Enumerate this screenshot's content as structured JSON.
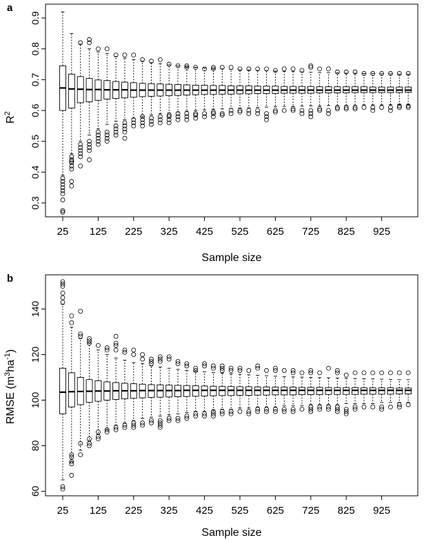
{
  "chart_data": [
    {
      "type": "boxplot",
      "panel_label": "a",
      "xlabel": "Sample size",
      "ylabel": "R",
      "ylabel_superscript": "2",
      "ylim": [
        0.255,
        0.945
      ],
      "yticks": [
        "0.3",
        "0.4",
        "0.5",
        "0.6",
        "0.7",
        "0.8",
        "0.9"
      ],
      "xticks": [
        "25",
        "125",
        "225",
        "325",
        "425",
        "525",
        "625",
        "725",
        "825",
        "925"
      ],
      "series": {
        "sizes": [
          25,
          50,
          75,
          100,
          125,
          150,
          175,
          200,
          225,
          250,
          275,
          300,
          325,
          350,
          375,
          400,
          425,
          450,
          475,
          500,
          525,
          550,
          575,
          600,
          625,
          650,
          675,
          700,
          725,
          750,
          775,
          800,
          825,
          850,
          875,
          900,
          925,
          950,
          975,
          1000
        ],
        "q1": [
          0.6,
          0.608,
          0.625,
          0.628,
          0.633,
          0.637,
          0.639,
          0.641,
          0.643,
          0.645,
          0.646,
          0.647,
          0.648,
          0.649,
          0.65,
          0.651,
          0.652,
          0.652,
          0.653,
          0.653,
          0.654,
          0.654,
          0.655,
          0.655,
          0.655,
          0.656,
          0.656,
          0.656,
          0.656,
          0.657,
          0.657,
          0.657,
          0.657,
          0.658,
          0.658,
          0.658,
          0.658,
          0.658,
          0.658,
          0.659
        ],
        "median": [
          0.673,
          0.67,
          0.669,
          0.668,
          0.668,
          0.667,
          0.667,
          0.667,
          0.666,
          0.666,
          0.666,
          0.666,
          0.666,
          0.666,
          0.666,
          0.666,
          0.666,
          0.666,
          0.666,
          0.666,
          0.666,
          0.666,
          0.666,
          0.666,
          0.666,
          0.666,
          0.666,
          0.666,
          0.666,
          0.666,
          0.666,
          0.666,
          0.666,
          0.666,
          0.666,
          0.666,
          0.666,
          0.666,
          0.666,
          0.666
        ],
        "q3": [
          0.745,
          0.718,
          0.71,
          0.704,
          0.699,
          0.697,
          0.694,
          0.692,
          0.69,
          0.688,
          0.687,
          0.686,
          0.685,
          0.684,
          0.683,
          0.682,
          0.682,
          0.681,
          0.681,
          0.68,
          0.68,
          0.68,
          0.679,
          0.679,
          0.679,
          0.678,
          0.678,
          0.678,
          0.678,
          0.677,
          0.677,
          0.677,
          0.677,
          0.677,
          0.677,
          0.676,
          0.676,
          0.676,
          0.676,
          0.676
        ],
        "wlow": [
          0.39,
          0.46,
          0.5,
          0.52,
          0.54,
          0.555,
          0.565,
          0.57,
          0.575,
          0.58,
          0.585,
          0.59,
          0.592,
          0.595,
          0.598,
          0.6,
          0.602,
          0.604,
          0.605,
          0.607,
          0.608,
          0.609,
          0.61,
          0.611,
          0.612,
          0.613,
          0.613,
          0.614,
          0.615,
          0.615,
          0.616,
          0.616,
          0.617,
          0.617,
          0.618,
          0.618,
          0.618,
          0.619,
          0.619,
          0.619
        ],
        "whigh": [
          0.92,
          0.85,
          0.815,
          0.8,
          0.79,
          0.785,
          0.775,
          0.77,
          0.765,
          0.76,
          0.755,
          0.752,
          0.748,
          0.745,
          0.742,
          0.74,
          0.738,
          0.736,
          0.735,
          0.733,
          0.732,
          0.731,
          0.73,
          0.729,
          0.728,
          0.727,
          0.726,
          0.725,
          0.724,
          0.723,
          0.723,
          0.722,
          0.721,
          0.721,
          0.72,
          0.72,
          0.719,
          0.719,
          0.718,
          0.718
        ],
        "outliers_low": [
          [
            0.27,
            0.275,
            0.31,
            0.33,
            0.34,
            0.35,
            0.36,
            0.37,
            0.38
          ],
          [
            0.355,
            0.37,
            0.41,
            0.42,
            0.43,
            0.435,
            0.44,
            0.45
          ],
          [
            0.42,
            0.45,
            0.46,
            0.47,
            0.48,
            0.49
          ],
          [
            0.44,
            0.47,
            0.48,
            0.49,
            0.5
          ],
          [
            0.49,
            0.5,
            0.51,
            0.52,
            0.53
          ],
          [
            0.5,
            0.51,
            0.52,
            0.53
          ],
          [
            0.52,
            0.53,
            0.54,
            0.55
          ],
          [
            0.51,
            0.53,
            0.54,
            0.55,
            0.56
          ],
          [
            0.55,
            0.56,
            0.57
          ],
          [
            0.55,
            0.56,
            0.57,
            0.58
          ],
          [
            0.555,
            0.565,
            0.575
          ],
          [
            0.56,
            0.57,
            0.58
          ],
          [
            0.56,
            0.57,
            0.58,
            0.585
          ],
          [
            0.57,
            0.58,
            0.59
          ],
          [
            0.57,
            0.58,
            0.59
          ],
          [
            0.575,
            0.585,
            0.59
          ],
          [
            0.58,
            0.59
          ],
          [
            0.58,
            0.59,
            0.595
          ],
          [
            0.585,
            0.59
          ],
          [
            0.59,
            0.6
          ],
          [
            0.595,
            0.6
          ],
          [
            0.59,
            0.6
          ],
          [
            0.59,
            0.6
          ],
          [
            0.57,
            0.58,
            0.59
          ],
          [
            0.595,
            0.6
          ],
          [
            0.6
          ],
          [
            0.6,
            0.605
          ],
          [
            0.59,
            0.6
          ],
          [
            0.58,
            0.59,
            0.6
          ],
          [
            0.6,
            0.605
          ],
          [
            0.59,
            0.6
          ],
          [
            0.605,
            0.61
          ],
          [
            0.605,
            0.61
          ],
          [
            0.605,
            0.61
          ],
          [
            0.61
          ],
          [
            0.6,
            0.61
          ],
          [
            0.61
          ],
          [
            0.6,
            0.61
          ],
          [
            0.61,
            0.615
          ],
          [
            0.61,
            0.615
          ]
        ],
        "outliers_high": [
          [],
          [],
          [
            0.82
          ],
          [
            0.82,
            0.83
          ],
          [
            0.8
          ],
          [
            0.8
          ],
          [
            0.78
          ],
          [
            0.78
          ],
          [
            0.78
          ],
          [
            0.765
          ],
          [
            0.76
          ],
          [
            0.765
          ],
          [
            0.75
          ],
          [
            0.745
          ],
          [
            0.745,
            0.74
          ],
          [
            0.74
          ],
          [
            0.735
          ],
          [
            0.74,
            0.735
          ],
          [
            0.74
          ],
          [
            0.74
          ],
          [
            0.735
          ],
          [
            0.735
          ],
          [
            0.735
          ],
          [
            0.735
          ],
          [
            0.73
          ],
          [
            0.735
          ],
          [
            0.735
          ],
          [
            0.73
          ],
          [
            0.745,
            0.74
          ],
          [
            0.735
          ],
          [
            0.735
          ],
          [
            0.725
          ],
          [
            0.725
          ],
          [
            0.725
          ],
          [
            0.72
          ],
          [
            0.72
          ],
          [
            0.72
          ],
          [
            0.72
          ],
          [
            0.72
          ],
          [
            0.72
          ]
        ]
      }
    },
    {
      "type": "boxplot",
      "panel_label": "b",
      "xlabel": "Sample size",
      "ylabel": "RMSE (m",
      "ylabel_sup1": "3",
      "ylabel_mid": "ha",
      "ylabel_sup2": "-1",
      "ylabel_end": ")",
      "ylim": [
        58,
        155
      ],
      "yticks": [
        "60",
        "80",
        "100",
        "120",
        "140"
      ],
      "xticks": [
        "25",
        "125",
        "225",
        "325",
        "425",
        "525",
        "625",
        "725",
        "825",
        "925"
      ],
      "series": {
        "sizes": [
          25,
          50,
          75,
          100,
          125,
          150,
          175,
          200,
          225,
          250,
          275,
          300,
          325,
          350,
          375,
          400,
          425,
          450,
          475,
          500,
          525,
          550,
          575,
          600,
          625,
          650,
          675,
          700,
          725,
          750,
          775,
          800,
          825,
          850,
          875,
          900,
          925,
          950,
          975,
          1000
        ],
        "q1": [
          94,
          97,
          98,
          99,
          99.5,
          100,
          100.3,
          100.6,
          100.8,
          101,
          101.2,
          101.3,
          101.4,
          101.5,
          101.6,
          101.7,
          101.8,
          101.9,
          102,
          102,
          102.1,
          102.1,
          102.2,
          102.2,
          102.3,
          102.3,
          102.3,
          102.4,
          102.4,
          102.4,
          102.5,
          102.5,
          102.5,
          102.5,
          102.6,
          102.6,
          102.6,
          102.6,
          102.7,
          102.7
        ],
        "median": [
          103.5,
          103.7,
          103.8,
          103.9,
          104,
          104,
          104.1,
          104.1,
          104.1,
          104.2,
          104.2,
          104.2,
          104.2,
          104.2,
          104.3,
          104.3,
          104.3,
          104.3,
          104.3,
          104.3,
          104.3,
          104.3,
          104.3,
          104.3,
          104.3,
          104.3,
          104.3,
          104.3,
          104.3,
          104.3,
          104.3,
          104.3,
          104.3,
          104.3,
          104.3,
          104.3,
          104.3,
          104.3,
          104.3,
          104.3
        ],
        "q3": [
          114,
          112,
          110,
          109,
          108.5,
          108,
          107.7,
          107.4,
          107.2,
          107,
          106.8,
          106.7,
          106.6,
          106.5,
          106.4,
          106.3,
          106.2,
          106.1,
          106,
          106,
          105.9,
          105.9,
          105.8,
          105.8,
          105.7,
          105.7,
          105.7,
          105.6,
          105.6,
          105.6,
          105.5,
          105.5,
          105.5,
          105.5,
          105.4,
          105.4,
          105.4,
          105.4,
          105.3,
          105.3
        ],
        "wlow": [
          65,
          73,
          78,
          82,
          85,
          87,
          89,
          90,
          91,
          92,
          92.5,
          93,
          93.5,
          94,
          94.5,
          95,
          95,
          95.5,
          96,
          96,
          96.5,
          96.5,
          97,
          97,
          97,
          97.5,
          97.5,
          97.5,
          98,
          98,
          98,
          98,
          98.5,
          98.5,
          98.5,
          98.5,
          99,
          99,
          99,
          99
        ],
        "whigh": [
          142,
          132,
          127,
          125,
          122,
          120,
          118.5,
          117.5,
          116.5,
          116,
          115,
          114.5,
          114,
          113.5,
          113,
          112.7,
          112.4,
          112.1,
          111.8,
          111.5,
          111.3,
          111.1,
          110.9,
          110.7,
          110.5,
          110.3,
          110.2,
          110.1,
          110,
          109.9,
          109.8,
          109.7,
          109.6,
          109.5,
          109.4,
          109.3,
          109.2,
          109.1,
          109,
          109
        ],
        "outliers_low": [
          [
            61,
            62
          ],
          [
            67,
            72,
            73,
            75,
            76
          ],
          [
            76,
            81
          ],
          [
            80,
            81,
            83
          ],
          [
            83,
            84,
            86
          ],
          [
            86,
            87
          ],
          [
            87,
            88
          ],
          [
            88,
            89
          ],
          [
            88,
            89,
            90
          ],
          [
            89,
            90
          ],
          [
            90,
            91
          ],
          [
            88,
            89,
            90,
            91
          ],
          [
            91,
            92
          ],
          [
            91,
            92
          ],
          [
            92,
            93
          ],
          [
            93,
            94
          ],
          [
            93,
            94
          ],
          [
            93,
            94,
            95
          ],
          [
            94,
            95
          ],
          [
            94,
            95
          ],
          [
            95
          ],
          [
            94,
            95
          ],
          [
            95,
            96
          ],
          [
            95,
            96
          ],
          [
            95,
            96
          ],
          [
            95,
            96
          ],
          [
            95,
            96
          ],
          [
            96
          ],
          [
            95,
            96,
            97
          ],
          [
            96,
            97
          ],
          [
            96,
            97
          ],
          [
            95,
            96,
            97
          ],
          [
            94,
            95,
            96
          ],
          [
            96,
            97
          ],
          [
            97
          ],
          [
            97
          ],
          [
            96,
            97
          ],
          [
            97
          ],
          [
            97,
            98
          ],
          [
            98
          ]
        ],
        "outliers_high": [
          [
            143,
            145,
            147,
            150,
            151,
            152
          ],
          [
            134,
            137
          ],
          [
            128,
            129,
            139
          ],
          [
            125,
            126,
            127
          ],
          [
            124
          ],
          [
            122,
            123
          ],
          [
            122,
            124,
            125,
            128
          ],
          [
            121,
            122
          ],
          [
            120,
            122
          ],
          [
            118,
            120
          ],
          [
            116,
            117,
            118
          ],
          [
            117,
            118,
            119
          ],
          [
            118,
            119
          ],
          [
            116,
            117
          ],
          [
            115,
            116
          ],
          [
            113,
            114
          ],
          [
            115,
            116
          ],
          [
            114,
            115
          ],
          [
            113,
            114,
            115
          ],
          [
            113,
            114
          ],
          [
            113,
            114
          ],
          [
            113
          ],
          [
            114,
            115
          ],
          [
            113
          ],
          [
            113,
            114
          ],
          [
            113
          ],
          [
            112,
            113
          ],
          [
            112
          ],
          [
            112,
            113
          ],
          [
            112
          ],
          [
            114
          ],
          [
            112,
            113
          ],
          [
            111
          ],
          [
            112
          ],
          [
            112
          ],
          [
            112
          ],
          [
            112
          ],
          [
            112
          ],
          [
            112
          ],
          [
            112
          ]
        ]
      }
    }
  ]
}
